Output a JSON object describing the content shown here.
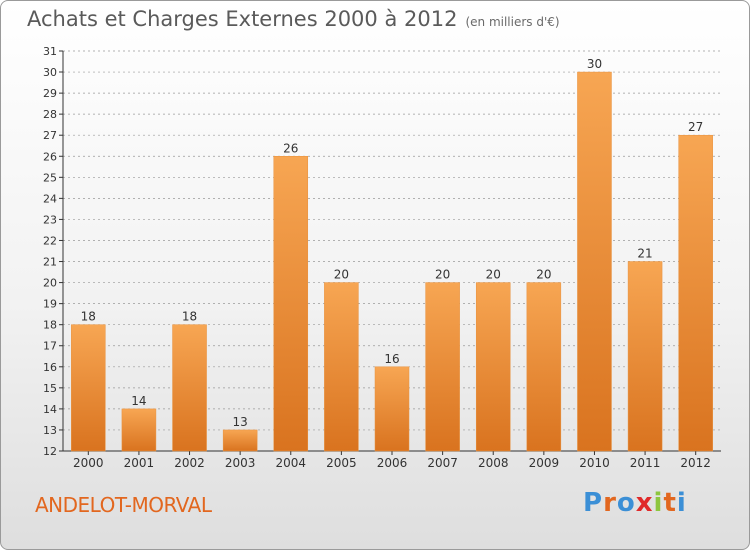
{
  "header": {
    "title": "Achats et Charges Externes 2000 à 2012",
    "unit": "(en milliers d'€)"
  },
  "footer": {
    "commune": "ANDELOT-MORVAL",
    "logo_text": "Proxiti",
    "logo_colors": [
      "#3b8fd6",
      "#e2671f",
      "#3b8fd6",
      "#e02a2a",
      "#8dc63f",
      "#e2671f",
      "#3b8fd6"
    ]
  },
  "colors": {
    "bar_top": "#f7a653",
    "bar_bottom": "#d9731f",
    "axis": "#333333",
    "grid": "#999999"
  },
  "chart_data": {
    "type": "bar",
    "title": "Achats et Charges Externes 2000 à 2012",
    "subtitle": "(en milliers d'€)",
    "categories": [
      "2000",
      "2001",
      "2002",
      "2003",
      "2004",
      "2005",
      "2006",
      "2007",
      "2008",
      "2009",
      "2010",
      "2011",
      "2012"
    ],
    "values": [
      18,
      14,
      18,
      13,
      26,
      20,
      16,
      20,
      20,
      20,
      30,
      21,
      27
    ],
    "ylim": [
      12,
      31
    ],
    "yticks": [
      12,
      13,
      14,
      15,
      16,
      17,
      18,
      19,
      20,
      21,
      22,
      23,
      24,
      25,
      26,
      27,
      28,
      29,
      30,
      31
    ],
    "grid": true,
    "data_labels": true
  }
}
